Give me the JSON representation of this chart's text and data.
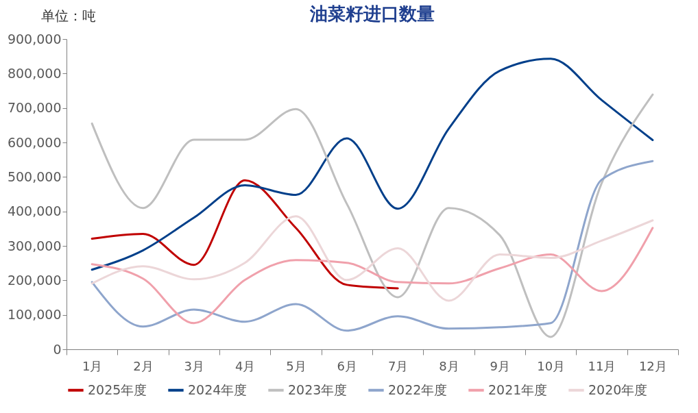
{
  "chart_data": {
    "type": "line",
    "title": "油菜籽进口数量",
    "annotations": [
      "单位：吨"
    ],
    "categories": [
      "1月",
      "2月",
      "3月",
      "4月",
      "5月",
      "6月",
      "7月",
      "8月",
      "9月",
      "10月",
      "11月",
      "12月"
    ],
    "ylim": [
      0,
      900000
    ],
    "yticks": [
      0,
      {
        "value": 100000,
        "label": "100,000"
      },
      {
        "value": 200000,
        "label": "200,000"
      },
      {
        "value": 300000,
        "label": "300,000"
      },
      {
        "value": 400000,
        "label": "400,000"
      },
      {
        "value": 500000,
        "label": "500,000"
      },
      {
        "value": 600000,
        "label": "600,000"
      },
      {
        "value": 700000,
        "label": "700,000"
      },
      {
        "value": 800000,
        "label": "800,000"
      },
      {
        "value": 900000,
        "label": "900,000"
      }
    ],
    "grid": false,
    "legend": "bottom",
    "marker": "none",
    "line_style": "solid",
    "series": [
      {
        "name": "2025年度",
        "color": "#c00000",
        "values": [
          321000,
          335000,
          245000,
          490000,
          352000,
          187000,
          177000,
          null,
          null,
          null,
          null,
          null
        ]
      },
      {
        "name": "2024年度",
        "color": "#003f8a",
        "values": [
          231000,
          287000,
          382000,
          476000,
          448000,
          612000,
          408000,
          640000,
          808000,
          843000,
          723000,
          607000
        ]
      },
      {
        "name": "2023年度",
        "color": "#bfbfbf",
        "values": [
          655000,
          410000,
          608000,
          608000,
          697000,
          422000,
          151000,
          410000,
          331000,
          36000,
          482000,
          739000
        ]
      },
      {
        "name": "2022年度",
        "color": "#8ea5cc",
        "values": [
          195000,
          66000,
          115000,
          80000,
          131000,
          54000,
          96000,
          60000,
          64000,
          76000,
          492000,
          546000
        ]
      },
      {
        "name": "2021年度",
        "color": "#f0a0ab",
        "values": [
          247000,
          205000,
          76000,
          201000,
          259000,
          251000,
          195000,
          191000,
          235000,
          275000,
          169000,
          352000
        ]
      },
      {
        "name": "2020年度",
        "color": "#ecd6d8",
        "values": [
          191000,
          241000,
          203000,
          251000,
          386000,
          201000,
          293000,
          141000,
          275000,
          265000,
          315000,
          374000
        ]
      }
    ]
  }
}
